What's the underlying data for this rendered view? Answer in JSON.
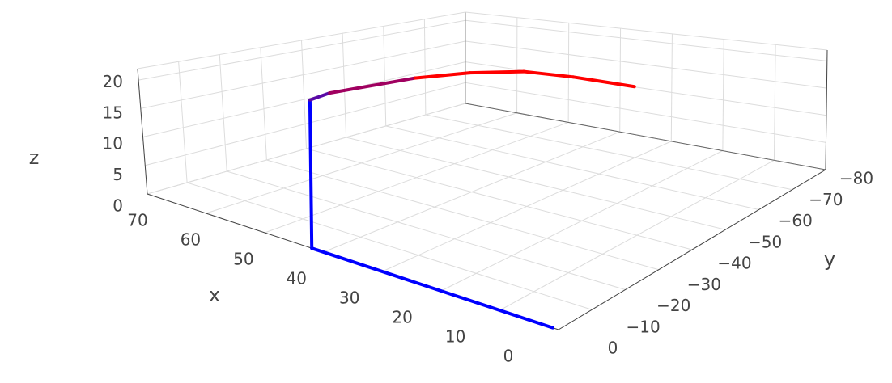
{
  "chart_data": {
    "type": "line3d",
    "x_title": "x",
    "y_title": "y",
    "z_title": "z",
    "xlim": [
      0,
      70
    ],
    "ylim": [
      -80,
      0
    ],
    "zlim": [
      0,
      22
    ],
    "xticks": [
      0,
      10,
      20,
      30,
      40,
      50,
      60,
      70
    ],
    "yticks": [
      {
        "value": 0,
        "label": "0"
      },
      {
        "value": -10,
        "label": "−10"
      },
      {
        "value": -20,
        "label": "−20"
      },
      {
        "value": -30,
        "label": "−30"
      },
      {
        "value": -40,
        "label": "−40"
      },
      {
        "value": -50,
        "label": "−50"
      },
      {
        "value": -60,
        "label": "−60"
      },
      {
        "value": -70,
        "label": "−70"
      },
      {
        "value": -80,
        "label": "−80"
      }
    ],
    "zticks": [
      0,
      5,
      10,
      15,
      20
    ],
    "grid": true,
    "x": [
      1,
      42,
      42,
      40,
      42,
      37,
      32,
      27,
      21
    ],
    "y": [
      0,
      0,
      0,
      -2,
      -28,
      -35,
      -42,
      -48,
      -56
    ],
    "z": [
      0,
      0,
      21,
      22,
      20.7,
      21.2,
      21,
      19.8,
      17.6
    ],
    "line_colors": [
      "#0000ff",
      "#0000ff",
      "#0000ff",
      "#5a0aa6",
      "#a00060",
      "#ff0000",
      "#ff0000",
      "#ff0000",
      "#ff0000"
    ]
  }
}
